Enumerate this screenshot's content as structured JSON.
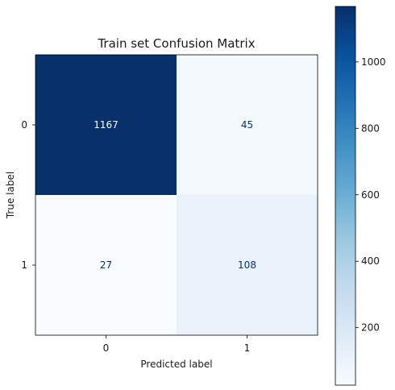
{
  "chart_data": {
    "type": "heatmap",
    "title": "Train set Confusion Matrix",
    "xlabel": "Predicted label",
    "ylabel": "True label",
    "x_categories": [
      "0",
      "1"
    ],
    "y_categories": [
      "0",
      "1"
    ],
    "matrix": [
      [
        1167,
        45
      ],
      [
        27,
        108
      ]
    ],
    "colormap": "Blues",
    "color_range": [
      27,
      1167
    ],
    "colorbar_ticks": [
      200,
      400,
      600,
      800,
      1000
    ],
    "grid": false
  }
}
